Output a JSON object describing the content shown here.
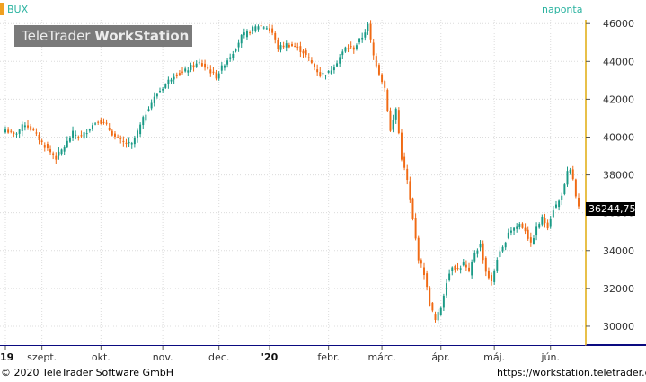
{
  "header": {
    "instrument": "BUX",
    "period": "naponta"
  },
  "watermark": {
    "brand_regular": "TeleTrader ",
    "brand_bold": "WorkStation"
  },
  "last_price": {
    "value_text": "36244,75",
    "value": 36244.75
  },
  "footer": {
    "copyright": "© 2020 TeleTrader Software GmbH",
    "url": "https://workstation.teletrader.com/"
  },
  "colors": {
    "up": "#1a9a86",
    "down": "#f06a14",
    "grid": "#dcdcdc",
    "axis_text": "#333333",
    "year_text": "#111111"
  },
  "chart_data": {
    "type": "candlestick",
    "title": "BUX",
    "period": "naponta",
    "ylim": [
      29000,
      46200
    ],
    "y_ticks": [
      30000,
      32000,
      34000,
      36000,
      38000,
      40000,
      42000,
      44000,
      46000
    ],
    "y_tick_labels": [
      "30000",
      "32000",
      "34000",
      "36000",
      "38000",
      "40000",
      "42000",
      "44000",
      "46000"
    ],
    "x_ticks": [
      {
        "label": "'19",
        "index": 0,
        "bold": true
      },
      {
        "label": "szept.",
        "index": 13,
        "bold": false
      },
      {
        "label": "okt.",
        "index": 34,
        "bold": false
      },
      {
        "label": "nov.",
        "index": 56,
        "bold": false
      },
      {
        "label": "dec.",
        "index": 76,
        "bold": false
      },
      {
        "label": "'20",
        "index": 94,
        "bold": true
      },
      {
        "label": "febr.",
        "index": 115,
        "bold": false
      },
      {
        "label": "márc.",
        "index": 134,
        "bold": false
      },
      {
        "label": "ápr.",
        "index": 155,
        "bold": false
      },
      {
        "label": "máj.",
        "index": 174,
        "bold": false
      },
      {
        "label": "jún.",
        "index": 194,
        "bold": false
      }
    ],
    "n_bars": 205,
    "close_path": [
      [
        0,
        40400
      ],
      [
        3,
        40100
      ],
      [
        7,
        40700
      ],
      [
        10,
        40300
      ],
      [
        13,
        39700
      ],
      [
        16,
        39200
      ],
      [
        18,
        38900
      ],
      [
        21,
        39500
      ],
      [
        24,
        40200
      ],
      [
        27,
        40000
      ],
      [
        30,
        40500
      ],
      [
        33,
        40900
      ],
      [
        36,
        40600
      ],
      [
        39,
        40000
      ],
      [
        42,
        39700
      ],
      [
        45,
        39600
      ],
      [
        48,
        40600
      ],
      [
        51,
        41600
      ],
      [
        54,
        42300
      ],
      [
        57,
        42800
      ],
      [
        60,
        43300
      ],
      [
        63,
        43400
      ],
      [
        66,
        43700
      ],
      [
        69,
        43900
      ],
      [
        72,
        43600
      ],
      [
        75,
        43200
      ],
      [
        78,
        43900
      ],
      [
        81,
        44500
      ],
      [
        84,
        45300
      ],
      [
        87,
        45600
      ],
      [
        90,
        45900
      ],
      [
        93,
        45800
      ],
      [
        95,
        45500
      ],
      [
        97,
        44700
      ],
      [
        100,
        44900
      ],
      [
        103,
        44800
      ],
      [
        106,
        44500
      ],
      [
        109,
        43900
      ],
      [
        112,
        43300
      ],
      [
        115,
        43400
      ],
      [
        118,
        44000
      ],
      [
        121,
        44700
      ],
      [
        124,
        44700
      ],
      [
        127,
        45300
      ],
      [
        129,
        45900
      ],
      [
        131,
        44300
      ],
      [
        133,
        43400
      ],
      [
        135,
        42600
      ],
      [
        137,
        40300
      ],
      [
        139,
        41500
      ],
      [
        141,
        38900
      ],
      [
        143,
        37700
      ],
      [
        145,
        35600
      ],
      [
        147,
        33600
      ],
      [
        149,
        32800
      ],
      [
        151,
        31200
      ],
      [
        153,
        30300
      ],
      [
        155,
        31000
      ],
      [
        157,
        32400
      ],
      [
        159,
        33200
      ],
      [
        161,
        33000
      ],
      [
        163,
        33300
      ],
      [
        165,
        32800
      ],
      [
        167,
        33900
      ],
      [
        169,
        34300
      ],
      [
        171,
        32900
      ],
      [
        173,
        32300
      ],
      [
        175,
        33600
      ],
      [
        177,
        34100
      ],
      [
        179,
        35000
      ],
      [
        181,
        35200
      ],
      [
        183,
        35400
      ],
      [
        185,
        35100
      ],
      [
        187,
        34300
      ],
      [
        189,
        35200
      ],
      [
        191,
        35700
      ],
      [
        193,
        35300
      ],
      [
        195,
        36200
      ],
      [
        197,
        36600
      ],
      [
        199,
        37400
      ],
      [
        200,
        38100
      ],
      [
        201,
        38200
      ],
      [
        202,
        37800
      ],
      [
        203,
        36800
      ],
      [
        204,
        36245
      ]
    ]
  }
}
